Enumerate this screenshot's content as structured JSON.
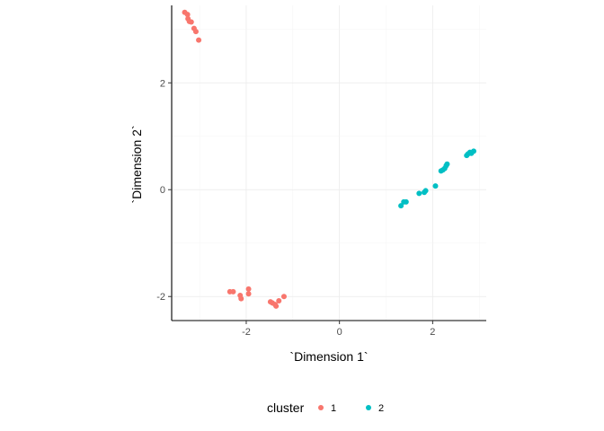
{
  "chart_data": {
    "type": "scatter",
    "xlabel": "`Dimension 1`",
    "ylabel": "`Dimension 2`",
    "xlim": [
      -3.6,
      3.15
    ],
    "ylim": [
      -2.45,
      3.45
    ],
    "x_ticks": [
      -2,
      0,
      2
    ],
    "y_ticks": [
      -2,
      0,
      2
    ],
    "x_tick_labels": [
      "-2",
      "0",
      "2"
    ],
    "y_tick_labels": [
      "-2",
      "0",
      "2"
    ],
    "grid": true,
    "legend": {
      "title": "cluster",
      "position": "bottom"
    },
    "series": [
      {
        "name": "1",
        "color": "#F8766D",
        "points": [
          [
            -3.32,
            3.32
          ],
          [
            -3.26,
            3.28
          ],
          [
            -3.25,
            3.2
          ],
          [
            -3.22,
            3.15
          ],
          [
            -3.18,
            3.14
          ],
          [
            -3.12,
            3.02
          ],
          [
            -3.08,
            2.96
          ],
          [
            -3.02,
            2.8
          ],
          [
            -2.35,
            -1.91
          ],
          [
            -2.28,
            -1.91
          ],
          [
            -2.13,
            -1.98
          ],
          [
            -2.11,
            -2.04
          ],
          [
            -1.95,
            -1.86
          ],
          [
            -1.95,
            -1.95
          ],
          [
            -1.48,
            -2.1
          ],
          [
            -1.44,
            -2.12
          ],
          [
            -1.38,
            -2.15
          ],
          [
            -1.36,
            -2.18
          ],
          [
            -1.3,
            -2.08
          ],
          [
            -1.19,
            -2.0
          ]
        ]
      },
      {
        "name": "2",
        "color": "#00BFC4",
        "points": [
          [
            1.32,
            -0.3
          ],
          [
            1.38,
            -0.23
          ],
          [
            1.43,
            -0.23
          ],
          [
            1.71,
            -0.07
          ],
          [
            1.82,
            -0.05
          ],
          [
            1.85,
            -0.02
          ],
          [
            2.06,
            0.07
          ],
          [
            2.18,
            0.35
          ],
          [
            2.22,
            0.37
          ],
          [
            2.26,
            0.4
          ],
          [
            2.29,
            0.45
          ],
          [
            2.31,
            0.48
          ],
          [
            2.73,
            0.64
          ],
          [
            2.76,
            0.67
          ],
          [
            2.8,
            0.7
          ],
          [
            2.83,
            0.68
          ],
          [
            2.88,
            0.72
          ]
        ]
      }
    ]
  }
}
